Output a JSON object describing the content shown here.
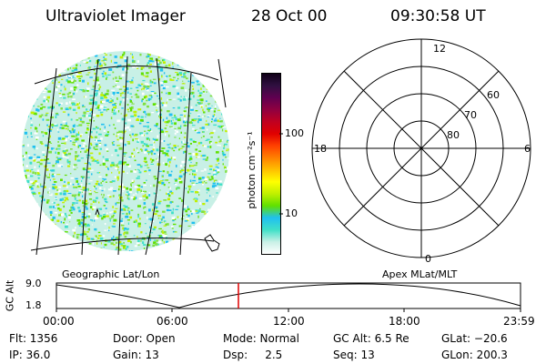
{
  "header": {
    "instrument": "Ultraviolet Imager",
    "date": "28 Oct 00",
    "time": "09:30:58 UT"
  },
  "map_panel": {
    "label": "Geographic Lat/Lon"
  },
  "colorbar": {
    "unit_label": "photon cm⁻²s⁻¹",
    "tick_labels": [
      "100",
      "10"
    ],
    "colors": [
      "#ffffff",
      "#c8f0e6",
      "#40e0c8",
      "#20c0f0",
      "#60e000",
      "#c0f000",
      "#ffff00",
      "#ffc000",
      "#ff8000",
      "#ff4000",
      "#e00000",
      "#c00020",
      "#900040",
      "#600050",
      "#301040",
      "#100018"
    ]
  },
  "polar_panel": {
    "label": "Apex MLat/MLT",
    "mlt_labels": {
      "top": "12",
      "left": "18",
      "right": "6",
      "bottom": "0"
    },
    "mlat_labels": [
      "60",
      "70",
      "80"
    ]
  },
  "altitude_strip": {
    "ylabel": "GC Alt",
    "y_ticks": [
      "9.0",
      "1.8"
    ],
    "x_ticks": [
      "00:00",
      "06:00",
      "12:00",
      "18:00",
      "23:59"
    ],
    "current_marker_time": "09:30:58"
  },
  "footer": {
    "flt": "Flt: 1356",
    "ip": "IP: 36.0",
    "door": "Door: Open",
    "gain": "Gain: 13",
    "mode": "Mode: Normal",
    "dsp": "Dsp:     2.5",
    "gcalt": "GC Alt: 6.5 Re",
    "seq": "Seq: 13",
    "glat": "GLat: −20.6",
    "glon": "GLon: 200.3"
  }
}
